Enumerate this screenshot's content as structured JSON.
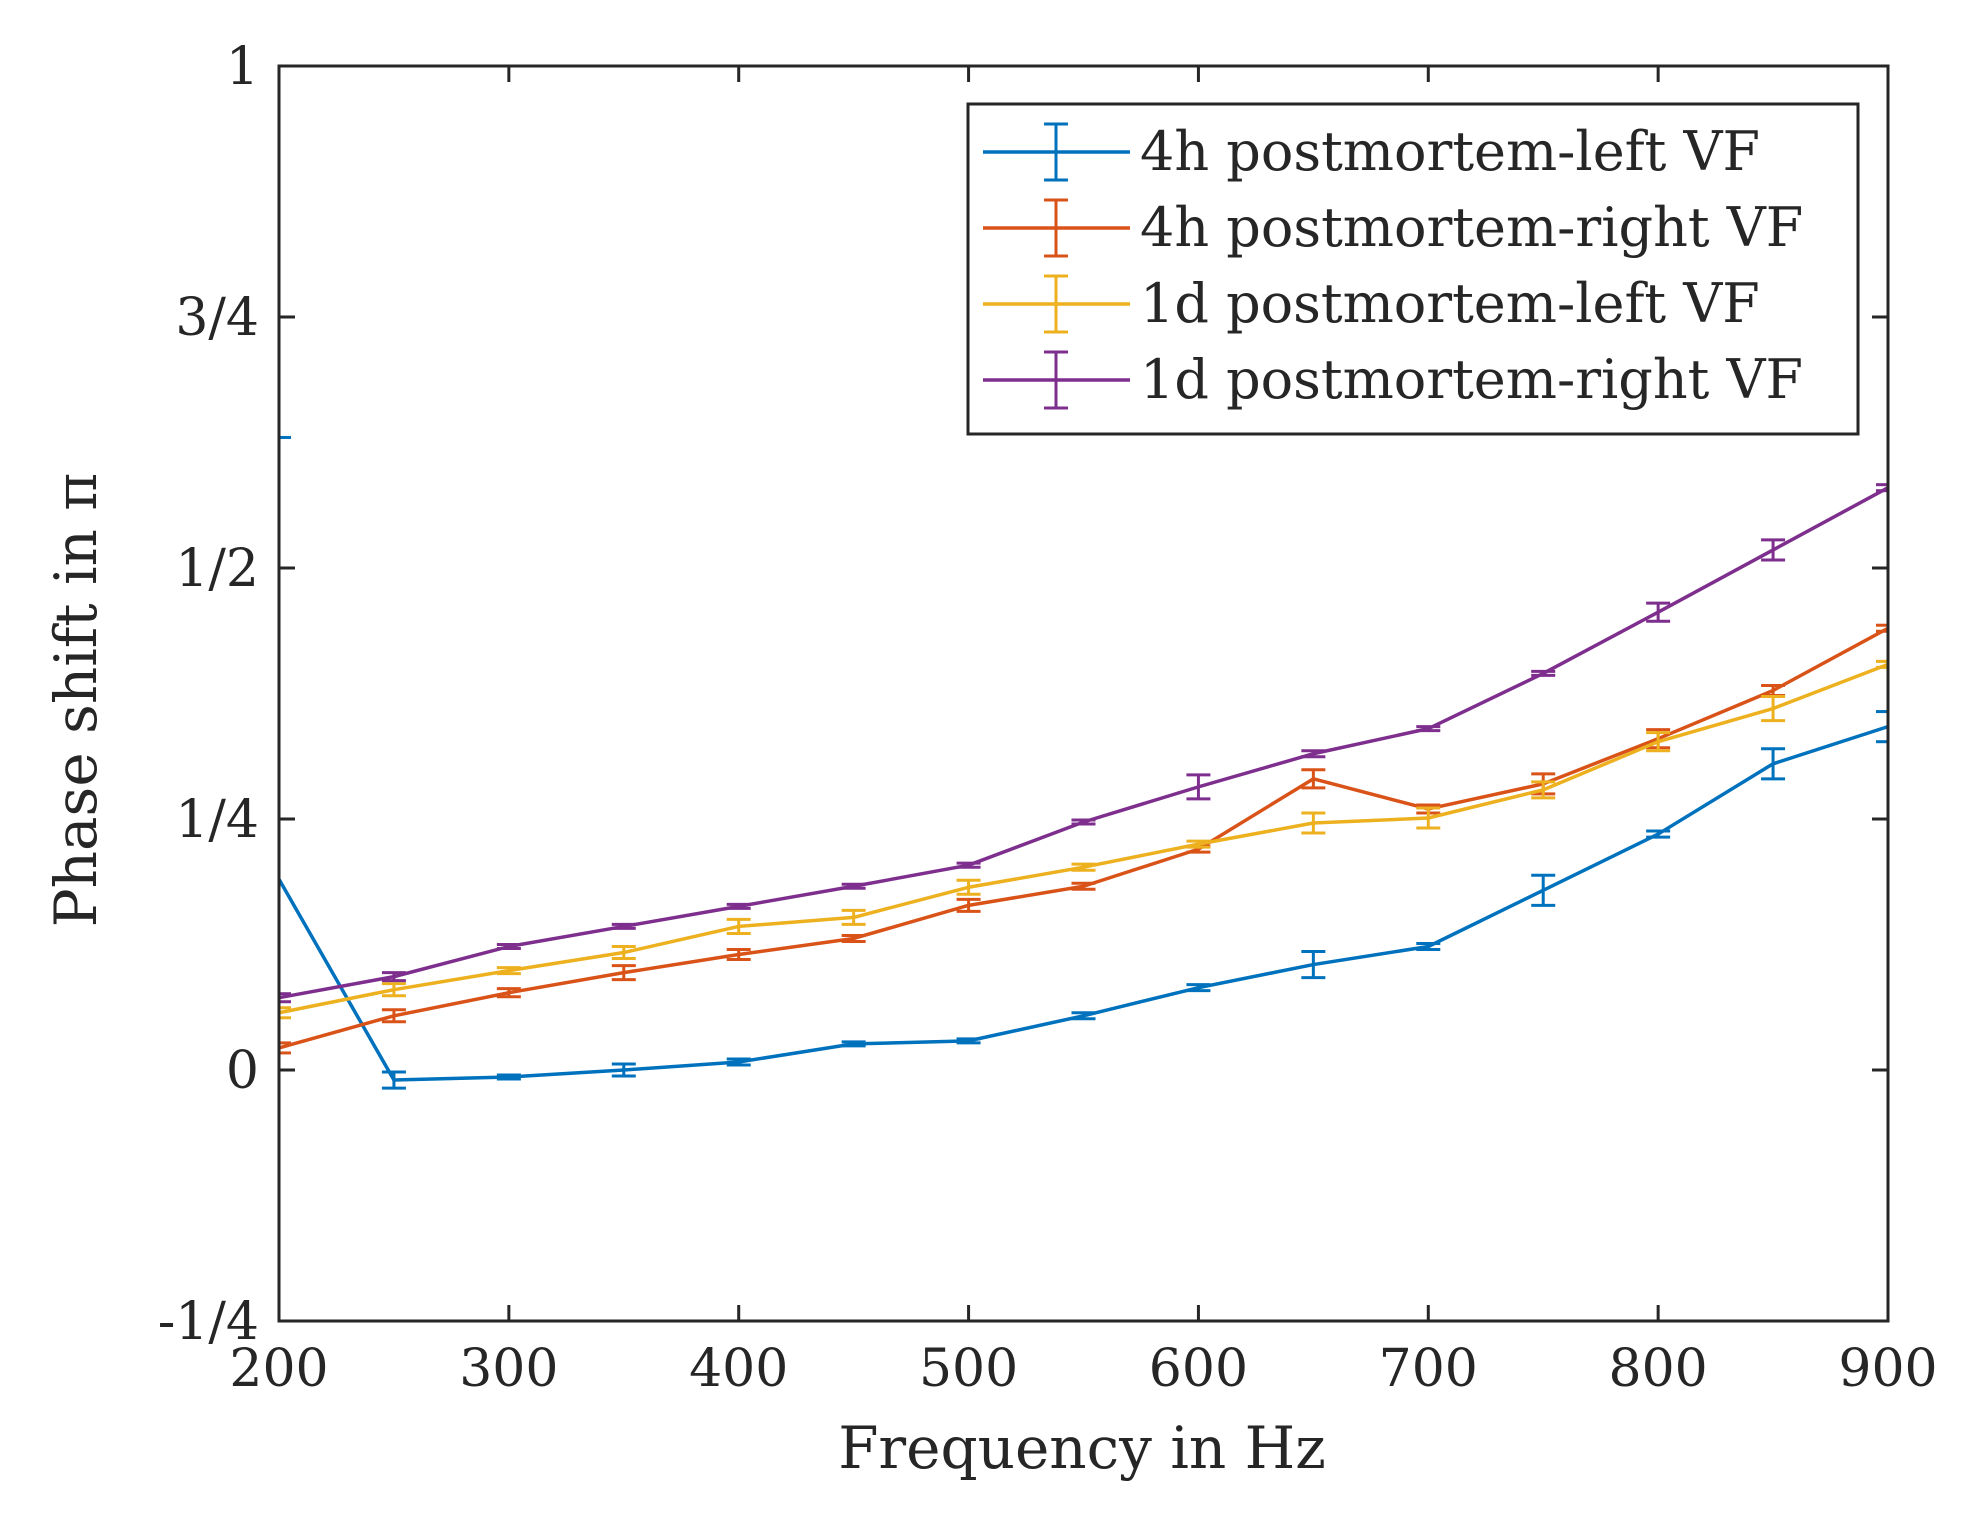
{
  "chart_data": {
    "type": "line",
    "title": "",
    "xlabel": "Frequency in Hz",
    "ylabel": "Phase shift in π",
    "xlim": [
      200,
      900
    ],
    "ylim": [
      -0.25,
      1
    ],
    "xticks": [
      200,
      300,
      400,
      500,
      600,
      700,
      800,
      900
    ],
    "xtick_labels": [
      "200",
      "300",
      "400",
      "500",
      "600",
      "700",
      "800",
      "900"
    ],
    "yticks": [
      -0.25,
      0,
      0.25,
      0.5,
      0.75,
      1
    ],
    "ytick_labels": [
      "-1/4",
      "0",
      "1/4",
      "1/2",
      "3/4",
      "1"
    ],
    "grid": false,
    "legend_position": "top-right",
    "x": [
      200,
      250,
      300,
      350,
      400,
      450,
      500,
      550,
      600,
      650,
      700,
      750,
      800,
      850,
      900
    ],
    "series": [
      {
        "name": "4h postmortem-left VF",
        "color": "#0072BD",
        "values": [
          0.19,
          -0.01,
          -0.007,
          0.0,
          0.008,
          0.026,
          0.029,
          0.054,
          0.082,
          0.105,
          0.123,
          0.179,
          0.235,
          0.305,
          0.342
        ],
        "errors": [
          0.44,
          0.008,
          0.002,
          0.006,
          0.003,
          0.002,
          0.002,
          0.003,
          0.003,
          0.013,
          0.003,
          0.015,
          0.003,
          0.015,
          0.015
        ]
      },
      {
        "name": "4h postmortem-right VF",
        "color": "#D95319",
        "values": [
          0.022,
          0.054,
          0.077,
          0.097,
          0.115,
          0.131,
          0.164,
          0.183,
          0.22,
          0.29,
          0.26,
          0.285,
          0.33,
          0.378,
          0.44
        ],
        "errors": [
          0.005,
          0.006,
          0.004,
          0.007,
          0.005,
          0.003,
          0.006,
          0.003,
          0.003,
          0.009,
          0.004,
          0.01,
          0.009,
          0.005,
          0.003
        ]
      },
      {
        "name": "1d postmortem-left VF",
        "color": "#EDB120",
        "values": [
          0.057,
          0.08,
          0.099,
          0.117,
          0.143,
          0.152,
          0.182,
          0.202,
          0.225,
          0.246,
          0.251,
          0.279,
          0.327,
          0.36,
          0.404
        ],
        "errors": [
          0.005,
          0.006,
          0.003,
          0.006,
          0.007,
          0.007,
          0.007,
          0.003,
          0.003,
          0.01,
          0.01,
          0.008,
          0.009,
          0.012,
          0.003
        ]
      },
      {
        "name": "1d postmortem-right VF",
        "color": "#7E2F8E",
        "values": [
          0.072,
          0.093,
          0.123,
          0.143,
          0.163,
          0.183,
          0.204,
          0.247,
          0.282,
          0.315,
          0.34,
          0.395,
          0.456,
          0.518,
          0.58
        ],
        "errors": [
          0.004,
          0.004,
          0.002,
          0.002,
          0.002,
          0.002,
          0.002,
          0.002,
          0.012,
          0.003,
          0.002,
          0.002,
          0.009,
          0.01,
          0.003
        ]
      }
    ]
  }
}
